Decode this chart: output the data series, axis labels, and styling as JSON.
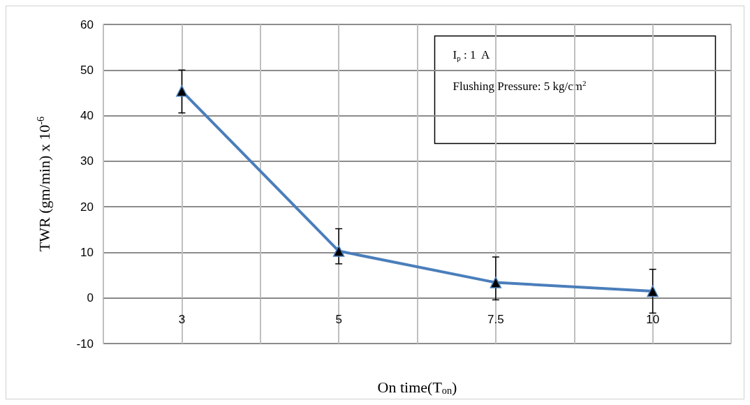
{
  "chart_data": {
    "type": "line",
    "xlabel": "On time(T$_{on}$)",
    "ylabel": "TWR (gm/min) x 10$^{-6}$",
    "categories": [
      "3",
      "5",
      "7.5",
      "10"
    ],
    "series": [
      {
        "color": "#4a7ebb",
        "values": [
          45.4,
          10.3,
          3.4,
          1.5
        ],
        "errors": [
          [
            40.6,
            50
          ],
          [
            7.5,
            15.2
          ],
          [
            -0.4,
            9.0
          ],
          [
            -3.3,
            6.3
          ]
        ]
      }
    ],
    "ylim": [
      -10,
      60
    ],
    "yticks": [
      -10,
      0,
      10,
      20,
      30,
      40,
      50,
      60
    ],
    "grid": true,
    "marker": "triangle",
    "line_style": "solid",
    "annotations": [
      "I$_{p}$ : 1  A",
      "Flushing Pressure: 5 kg/cm$^{2}$"
    ]
  }
}
